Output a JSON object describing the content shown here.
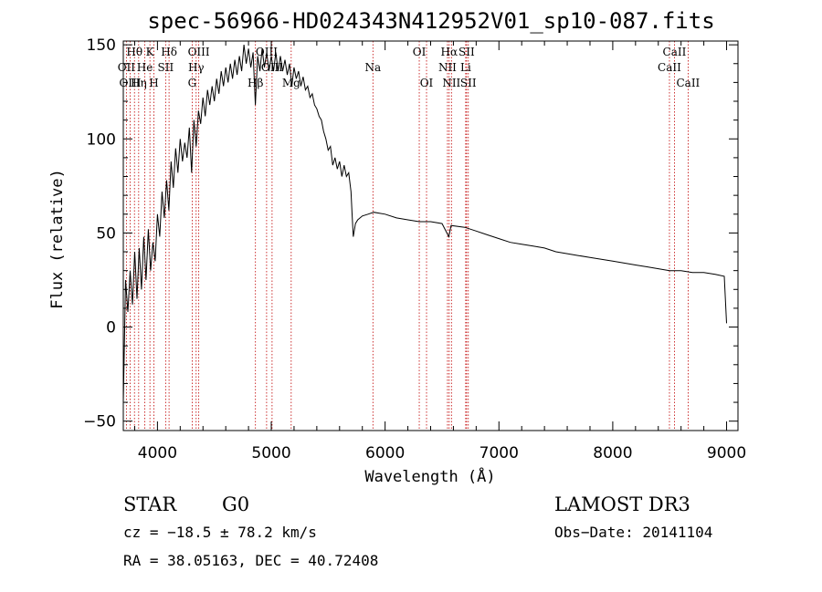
{
  "chart_data": {
    "type": "line",
    "title": "spec-56966-HD024343N412952V01_sp10-087.fits",
    "xlabel": "Wavelength (Å)",
    "ylabel": "Flux (relative)",
    "xlim": [
      3700,
      9100
    ],
    "ylim": [
      -55,
      152
    ],
    "xticks": [
      4000,
      5000,
      6000,
      7000,
      8000,
      9000
    ],
    "yticks": [
      -50,
      0,
      50,
      100,
      150
    ],
    "grid": false,
    "series": [
      {
        "color": "#000000",
        "points": [
          [
            3700,
            -40
          ],
          [
            3720,
            25
          ],
          [
            3740,
            8
          ],
          [
            3760,
            30
          ],
          [
            3780,
            12
          ],
          [
            3800,
            40
          ],
          [
            3820,
            15
          ],
          [
            3840,
            42
          ],
          [
            3860,
            20
          ],
          [
            3880,
            48
          ],
          [
            3900,
            25
          ],
          [
            3920,
            52
          ],
          [
            3940,
            30
          ],
          [
            3960,
            45
          ],
          [
            3980,
            35
          ],
          [
            4000,
            60
          ],
          [
            4020,
            48
          ],
          [
            4040,
            72
          ],
          [
            4060,
            58
          ],
          [
            4080,
            78
          ],
          [
            4100,
            62
          ],
          [
            4120,
            88
          ],
          [
            4140,
            74
          ],
          [
            4160,
            95
          ],
          [
            4180,
            82
          ],
          [
            4200,
            100
          ],
          [
            4220,
            88
          ],
          [
            4240,
            98
          ],
          [
            4260,
            90
          ],
          [
            4280,
            106
          ],
          [
            4300,
            82
          ],
          [
            4320,
            110
          ],
          [
            4340,
            96
          ],
          [
            4360,
            115
          ],
          [
            4380,
            108
          ],
          [
            4400,
            122
          ],
          [
            4420,
            112
          ],
          [
            4440,
            126
          ],
          [
            4460,
            118
          ],
          [
            4480,
            128
          ],
          [
            4500,
            120
          ],
          [
            4520,
            132
          ],
          [
            4540,
            124
          ],
          [
            4560,
            136
          ],
          [
            4580,
            128
          ],
          [
            4600,
            138
          ],
          [
            4620,
            130
          ],
          [
            4640,
            140
          ],
          [
            4660,
            132
          ],
          [
            4680,
            142
          ],
          [
            4700,
            134
          ],
          [
            4720,
            144
          ],
          [
            4740,
            136
          ],
          [
            4760,
            150
          ],
          [
            4780,
            140
          ],
          [
            4800,
            148
          ],
          [
            4820,
            138
          ],
          [
            4840,
            146
          ],
          [
            4860,
            118
          ],
          [
            4880,
            144
          ],
          [
            4900,
            136
          ],
          [
            4920,
            148
          ],
          [
            4940,
            138
          ],
          [
            4960,
            146
          ],
          [
            4980,
            136
          ],
          [
            5000,
            144
          ],
          [
            5020,
            136
          ],
          [
            5040,
            146
          ],
          [
            5060,
            136
          ],
          [
            5080,
            144
          ],
          [
            5100,
            136
          ],
          [
            5120,
            142
          ],
          [
            5140,
            134
          ],
          [
            5160,
            140
          ],
          [
            5180,
            128
          ],
          [
            5200,
            138
          ],
          [
            5220,
            132
          ],
          [
            5240,
            136
          ],
          [
            5260,
            128
          ],
          [
            5280,
            133
          ],
          [
            5300,
            126
          ],
          [
            5320,
            128
          ],
          [
            5340,
            122
          ],
          [
            5360,
            124
          ],
          [
            5380,
            118
          ],
          [
            5400,
            116
          ],
          [
            5420,
            112
          ],
          [
            5440,
            110
          ],
          [
            5460,
            104
          ],
          [
            5480,
            100
          ],
          [
            5500,
            94
          ],
          [
            5520,
            96
          ],
          [
            5540,
            86
          ],
          [
            5560,
            90
          ],
          [
            5580,
            84
          ],
          [
            5600,
            88
          ],
          [
            5620,
            80
          ],
          [
            5640,
            86
          ],
          [
            5660,
            80
          ],
          [
            5680,
            82
          ],
          [
            5700,
            72
          ],
          [
            5710,
            60
          ],
          [
            5720,
            48
          ],
          [
            5740,
            55
          ],
          [
            5760,
            57
          ],
          [
            5800,
            59
          ],
          [
            5850,
            60
          ],
          [
            5900,
            61
          ],
          [
            6000,
            60
          ],
          [
            6100,
            58
          ],
          [
            6200,
            57
          ],
          [
            6300,
            56
          ],
          [
            6400,
            56
          ],
          [
            6500,
            55
          ],
          [
            6560,
            48
          ],
          [
            6580,
            54
          ],
          [
            6700,
            53
          ],
          [
            6800,
            51
          ],
          [
            6900,
            49
          ],
          [
            7000,
            47
          ],
          [
            7100,
            45
          ],
          [
            7200,
            44
          ],
          [
            7300,
            43
          ],
          [
            7400,
            42
          ],
          [
            7500,
            40
          ],
          [
            7600,
            39
          ],
          [
            7700,
            38
          ],
          [
            7800,
            37
          ],
          [
            7900,
            36
          ],
          [
            8000,
            35
          ],
          [
            8100,
            34
          ],
          [
            8200,
            33
          ],
          [
            8300,
            32
          ],
          [
            8400,
            31
          ],
          [
            8500,
            30
          ],
          [
            8600,
            30
          ],
          [
            8700,
            29
          ],
          [
            8800,
            29
          ],
          [
            8900,
            28
          ],
          [
            8980,
            27
          ],
          [
            9000,
            2
          ]
        ]
      }
    ],
    "lines": [
      {
        "label": "Hθ",
        "x": 3798,
        "row": 0,
        "pos": "top"
      },
      {
        "label": "OII",
        "x": 3727,
        "row": 1,
        "pos": "top"
      },
      {
        "label": "OIII",
        "x": 3760,
        "row": 2,
        "pos": "top"
      },
      {
        "label": "Hη",
        "x": 3835,
        "row": 2,
        "pos": "top"
      },
      {
        "label": "He",
        "x": 3889,
        "row": 1,
        "pos": "top"
      },
      {
        "label": "K",
        "x": 3934,
        "row": 0,
        "pos": "top"
      },
      {
        "label": "H",
        "x": 3969,
        "row": 2,
        "pos": "top"
      },
      {
        "label": "Hδ",
        "x": 4102,
        "row": 0,
        "pos": "top"
      },
      {
        "label": "SII",
        "x": 4072,
        "row": 1,
        "pos": "top"
      },
      {
        "label": "OIII",
        "x": 4363,
        "row": 0,
        "pos": "top"
      },
      {
        "label": "Hγ",
        "x": 4340,
        "row": 1,
        "pos": "top"
      },
      {
        "label": "G",
        "x": 4305,
        "row": 2,
        "pos": "top"
      },
      {
        "label": "OIII",
        "x": 4959,
        "row": 0,
        "pos": "top"
      },
      {
        "label": "OIII",
        "x": 5007,
        "row": 1,
        "pos": "top"
      },
      {
        "label": "Hβ",
        "x": 4861,
        "row": 2,
        "pos": "top"
      },
      {
        "label": "Mg",
        "x": 5175,
        "row": 2,
        "pos": "top"
      },
      {
        "label": "Na",
        "x": 5893,
        "row": 1,
        "pos": "top"
      },
      {
        "label": "OI",
        "x": 6300,
        "row": 0,
        "pos": "top"
      },
      {
        "label": "OI",
        "x": 6364,
        "row": 2,
        "pos": "top"
      },
      {
        "label": "Hα",
        "x": 6563,
        "row": 0,
        "pos": "top"
      },
      {
        "label": "SII",
        "x": 6716,
        "row": 0,
        "pos": "top"
      },
      {
        "label": "NII",
        "x": 6548,
        "row": 1,
        "pos": "top"
      },
      {
        "label": "Li",
        "x": 6708,
        "row": 1,
        "pos": "top"
      },
      {
        "label": "NII",
        "x": 6583,
        "row": 2,
        "pos": "top"
      },
      {
        "label": "SII",
        "x": 6731,
        "row": 2,
        "pos": "top"
      },
      {
        "label": "CaII",
        "x": 8542,
        "row": 0,
        "pos": "top"
      },
      {
        "label": "CaII",
        "x": 8498,
        "row": 1,
        "pos": "top"
      },
      {
        "label": "CaII",
        "x": 8662,
        "row": 2,
        "pos": "top"
      }
    ],
    "line_color": "#c00000"
  },
  "info": {
    "class": "STAR",
    "subclass": "G0",
    "survey": "LAMOST DR3",
    "cz": "cz = −18.5 ± 78.2 km/s",
    "obs_date": "Obs−Date: 20141104",
    "radec": "RA =  38.05163, DEC =  40.72408"
  }
}
